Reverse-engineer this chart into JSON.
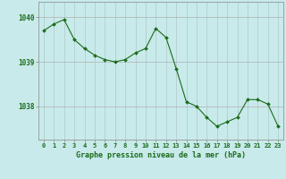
{
  "x": [
    0,
    1,
    2,
    3,
    4,
    5,
    6,
    7,
    8,
    9,
    10,
    11,
    12,
    13,
    14,
    15,
    16,
    17,
    18,
    19,
    20,
    21,
    22,
    23
  ],
  "y": [
    1039.7,
    1039.85,
    1039.95,
    1039.5,
    1039.3,
    1039.15,
    1039.05,
    1039.0,
    1039.05,
    1039.2,
    1039.3,
    1039.75,
    1039.55,
    1038.85,
    1038.1,
    1038.0,
    1037.75,
    1037.55,
    1037.65,
    1037.75,
    1038.15,
    1038.15,
    1038.05,
    1037.55
  ],
  "line_color": "#1a6b1a",
  "marker_color": "#1a6b1a",
  "bg_color": "#c8eaea",
  "grid_color_v": "#b0c8c8",
  "grid_color_h": "#b0b0b0",
  "xlabel": "Graphe pression niveau de la mer (hPa)",
  "xlabel_color": "#1a6b1a",
  "tick_color": "#1a6b1a",
  "ytick_labels": [
    "1038",
    "1039",
    "1040"
  ],
  "ytick_values": [
    1038,
    1039,
    1040
  ],
  "ylim": [
    1037.25,
    1040.35
  ],
  "xlim": [
    -0.5,
    23.5
  ],
  "xtick_labels": [
    "0",
    "1",
    "2",
    "3",
    "4",
    "5",
    "6",
    "7",
    "8",
    "9",
    "10",
    "11",
    "12",
    "13",
    "14",
    "15",
    "16",
    "17",
    "18",
    "19",
    "20",
    "21",
    "22",
    "23"
  ],
  "figsize": [
    3.2,
    2.0
  ],
  "dpi": 100
}
